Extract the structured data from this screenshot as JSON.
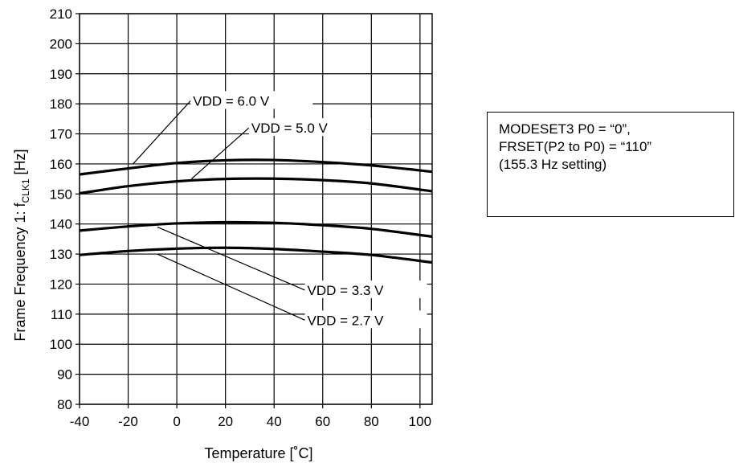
{
  "chart_data": {
    "type": "line",
    "title": "",
    "xlabel": "Temperature [˚C]",
    "ylabel_main": "Frame Frequency 1: f",
    "ylabel_sub": "CLK1",
    "ylabel_unit": " [Hz]",
    "xlim": [
      -40,
      105
    ],
    "ylim": [
      80,
      210
    ],
    "x_ticks": [
      -40,
      -20,
      0,
      20,
      40,
      60,
      80,
      100
    ],
    "y_ticks": [
      80,
      90,
      100,
      110,
      120,
      130,
      140,
      150,
      160,
      170,
      180,
      190,
      200,
      210
    ],
    "grid": true,
    "series": [
      {
        "name": "VDD = 6.0 V",
        "x": [
          -40,
          -20,
          0,
          20,
          40,
          60,
          80,
          105
        ],
        "y": [
          156.5,
          158.5,
          160.3,
          161.2,
          161.3,
          160.6,
          159.5,
          157.4
        ]
      },
      {
        "name": "VDD = 5.0 V",
        "x": [
          -40,
          -20,
          0,
          20,
          40,
          60,
          80,
          105
        ],
        "y": [
          150.2,
          152.6,
          154.2,
          155.0,
          155.1,
          154.6,
          153.5,
          150.9
        ]
      },
      {
        "name": "VDD = 3.3 V",
        "x": [
          -40,
          -20,
          0,
          20,
          40,
          60,
          80,
          105
        ],
        "y": [
          137.8,
          139.2,
          140.2,
          140.6,
          140.4,
          139.6,
          138.4,
          135.8
        ]
      },
      {
        "name": "VDD = 2.7 V",
        "x": [
          -40,
          -20,
          0,
          20,
          40,
          60,
          80,
          105
        ],
        "y": [
          129.7,
          131.0,
          131.8,
          132.1,
          131.7,
          130.8,
          129.7,
          127.2
        ]
      }
    ],
    "annotations": [
      {
        "text": "VDD = 6.0 V",
        "point_x": -18,
        "point_y": 160,
        "label_x": 5,
        "label_y": 181
      },
      {
        "text": "VDD = 5.0 V",
        "point_x": 6,
        "point_y": 155,
        "label_x": 29,
        "label_y": 172
      },
      {
        "text": "VDD = 3.3 V",
        "point_x": -8,
        "point_y": 139,
        "label_x": 52,
        "label_y": 118
      },
      {
        "text": "VDD = 2.7 V",
        "point_x": -8,
        "point_y": 130,
        "label_x": 52,
        "label_y": 108
      }
    ]
  },
  "note": {
    "lines": [
      "MODESET3 P0 = “0”,",
      "FRSET(P2 to P0) = “110”",
      "(155.3 Hz setting)"
    ]
  }
}
